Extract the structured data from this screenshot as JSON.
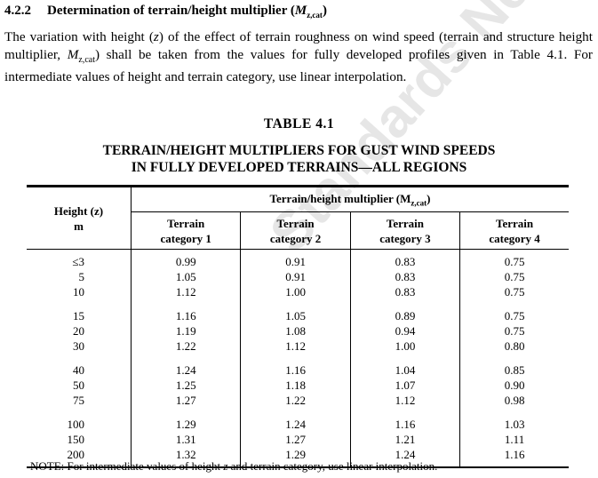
{
  "section": {
    "number": "4.2.2",
    "title": "Determination of terrain/height multiplier (",
    "symbol": "M",
    "symbol_sub": "z,cat",
    "title_end": ")"
  },
  "paragraph": {
    "part1": "The variation with height (",
    "z": "z",
    "part2": ") of the effect of terrain roughness on wind speed (terrain and structure height multiplier, ",
    "M": "M",
    "Msub": "z,cat",
    "part3": ") shall be taken from the values for fully developed profiles given in Table 4.1. For intermediate values of height and terrain category, use linear interpolation."
  },
  "table": {
    "title": "TABLE   4.1",
    "caption_line1": "TERRAIN/HEIGHT MULTIPLIERS FOR GUST WIND SPEEDS",
    "caption_line2": "IN FULLY DEVELOPED TERRAINS—ALL REGIONS",
    "height_header_line1": "Height (z)",
    "height_header_line2": "m",
    "span_header": "Terrain/height multiplier (M",
    "span_header_sub": "z,cat",
    "span_header_end": ")",
    "categories": [
      {
        "line1": "Terrain",
        "line2": "category 1"
      },
      {
        "line1": "Terrain",
        "line2": "category 2"
      },
      {
        "line1": "Terrain",
        "line2": "category 3"
      },
      {
        "line1": "Terrain",
        "line2": "category 4"
      }
    ],
    "groups": [
      [
        {
          "h": "≤3",
          "v": [
            "0.99",
            "0.91",
            "0.83",
            "0.75"
          ]
        },
        {
          "h": "5",
          "v": [
            "1.05",
            "0.91",
            "0.83",
            "0.75"
          ]
        },
        {
          "h": "10",
          "v": [
            "1.12",
            "1.00",
            "0.83",
            "0.75"
          ]
        }
      ],
      [
        {
          "h": "15",
          "v": [
            "1.16",
            "1.05",
            "0.89",
            "0.75"
          ]
        },
        {
          "h": "20",
          "v": [
            "1.19",
            "1.08",
            "0.94",
            "0.75"
          ]
        },
        {
          "h": "30",
          "v": [
            "1.22",
            "1.12",
            "1.00",
            "0.80"
          ]
        }
      ],
      [
        {
          "h": "40",
          "v": [
            "1.24",
            "1.16",
            "1.04",
            "0.85"
          ]
        },
        {
          "h": "50",
          "v": [
            "1.25",
            "1.18",
            "1.07",
            "0.90"
          ]
        },
        {
          "h": "75",
          "v": [
            "1.27",
            "1.22",
            "1.12",
            "0.98"
          ]
        }
      ],
      [
        {
          "h": "100",
          "v": [
            "1.29",
            "1.24",
            "1.16",
            "1.03"
          ]
        },
        {
          "h": "150",
          "v": [
            "1.31",
            "1.27",
            "1.21",
            "1.11"
          ]
        },
        {
          "h": "200",
          "v": [
            "1.32",
            "1.29",
            "1.24",
            "1.16"
          ]
        }
      ]
    ]
  },
  "note": {
    "part1": "NOTE: For intermediate values of height ",
    "z": "z",
    "part2": " and terrain category, use linear interpolation."
  },
  "watermark": "Standards New Zealand"
}
